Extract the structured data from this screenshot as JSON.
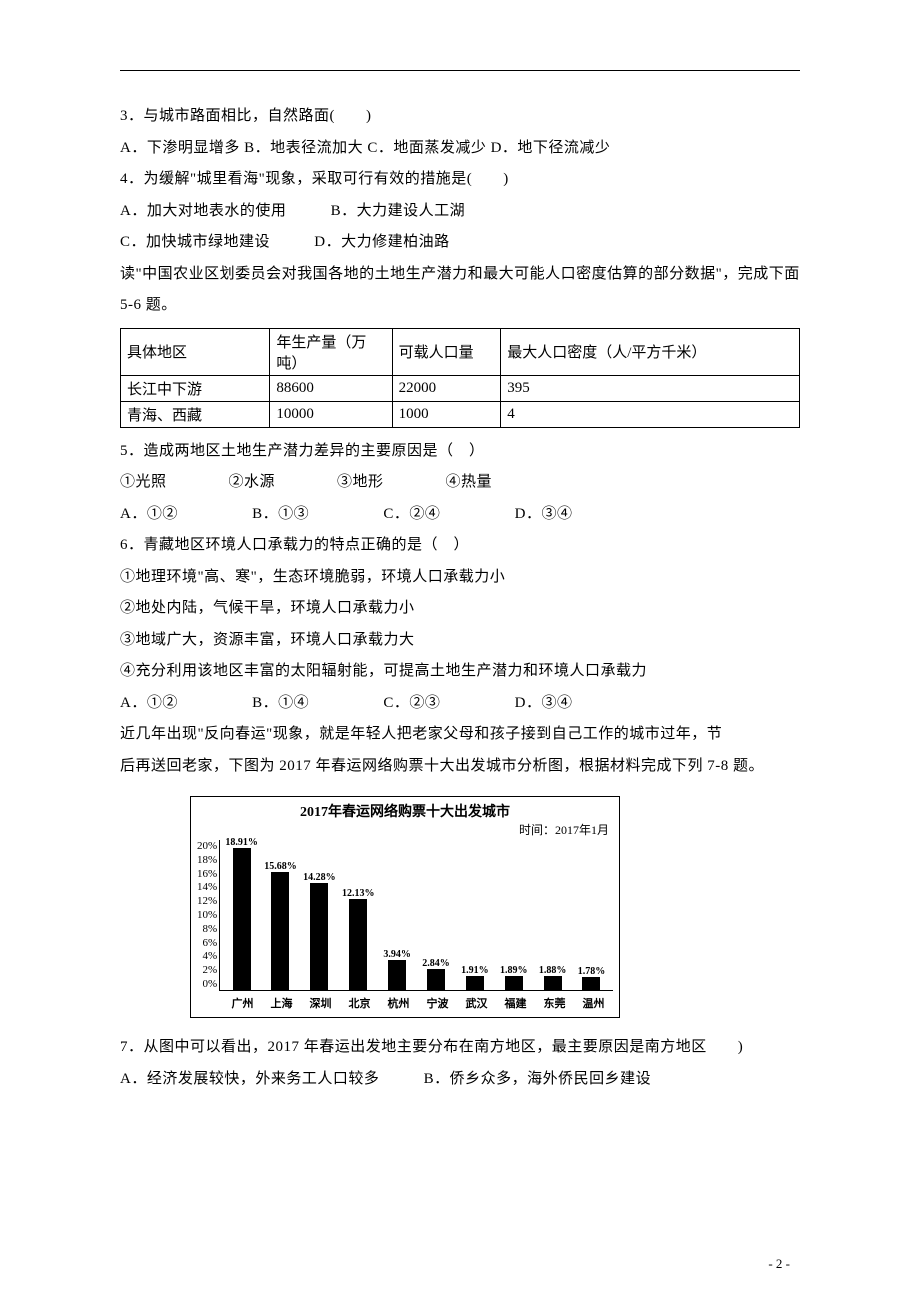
{
  "q3": {
    "text": "3．与城市路面相比，自然路面(　　)",
    "opts": "A．下渗明显增多  B．地表径流加大  C．地面蒸发减少  D．地下径流减少"
  },
  "q4": {
    "text": "4．为缓解\"城里看海\"现象，采取可行有效的措施是(　　)",
    "a": "A．加大对地表水的使用",
    "b": "B．大力建设人工湖",
    "c": "C．加快城市绿地建设",
    "d": "D．大力修建柏油路"
  },
  "intro56": "读\"中国农业区划委员会对我国各地的土地生产潜力和最大可能人口密度估算的部分数据\"，完成下面 5-6 题。",
  "table": {
    "columns": [
      "具体地区",
      "年生产量（万吨）",
      "可载人口量",
      "最大人口密度（人/平方千米）"
    ],
    "rows": [
      [
        "长江中下游",
        "88600",
        "22000",
        "395"
      ],
      [
        "青海、西藏",
        "10000",
        "1000",
        "4"
      ]
    ],
    "col_widths": [
      "22%",
      "18%",
      "16%",
      "44%"
    ]
  },
  "q5": {
    "text": "5．造成两地区土地生产潜力差异的主要原因是（　）",
    "items": "①光照　　　　②水源　　　　③地形　　　　④热量",
    "opts": {
      "a": "A．①②",
      "b": "B．①③",
      "c": "C．②④",
      "d": "D．③④"
    }
  },
  "q6": {
    "text": "6．青藏地区环境人口承载力的特点正确的是（　）",
    "l1": "①地理环境\"高、寒\"，生态环境脆弱，环境人口承载力小",
    "l2": "②地处内陆，气候干旱，环境人口承载力小",
    "l3": "③地域广大，资源丰富，环境人口承载力大",
    "l4": "④充分利用该地区丰富的太阳辐射能，可提高土地生产潜力和环境人口承载力",
    "opts": {
      "a": "A．①②",
      "b": "B．①④",
      "c": "C．②③",
      "d": "D．③④"
    }
  },
  "intro78a": "近几年出现\"反向春运\"现象，就是年轻人把老家父母和孩子接到自己工作的城市过年，节",
  "intro78b": "后再送回老家，下图为 2017 年春运网络购票十大出发城市分析图，根据材料完成下列 7-8 题。",
  "chart": {
    "type": "bar",
    "title": "2017年春运网络购票十大出发城市",
    "subtitle": "时间：2017年1月",
    "categories": [
      "广州",
      "上海",
      "深圳",
      "北京",
      "杭州",
      "宁波",
      "武汉",
      "福建",
      "东莞",
      "温州"
    ],
    "values": [
      18.91,
      15.68,
      14.28,
      12.13,
      3.94,
      2.84,
      1.91,
      1.89,
      1.88,
      1.78
    ],
    "value_labels": [
      "18.91%",
      "15.68%",
      "14.28%",
      "12.13%",
      "3.94%",
      "2.84%",
      "1.91%",
      "1.89%",
      "1.88%",
      "1.78%"
    ],
    "ylim": [
      0,
      20
    ],
    "yticks": [
      "20%",
      "18%",
      "16%",
      "14%",
      "12%",
      "10%",
      "8%",
      "6%",
      "4%",
      "2%",
      "0%"
    ],
    "bar_color": "#000000",
    "background_color": "#ffffff",
    "border_color": "#000000",
    "title_fontsize": 14,
    "label_fontsize": 11
  },
  "q7": {
    "text": "7．从图中可以看出，2017 年春运出发地主要分布在南方地区，最主要原因是南方地区　　)",
    "a": "A．经济发展较快，外来务工人口较多",
    "b": "B．侨乡众多，海外侨民回乡建设"
  },
  "page_num": "- 2 -"
}
